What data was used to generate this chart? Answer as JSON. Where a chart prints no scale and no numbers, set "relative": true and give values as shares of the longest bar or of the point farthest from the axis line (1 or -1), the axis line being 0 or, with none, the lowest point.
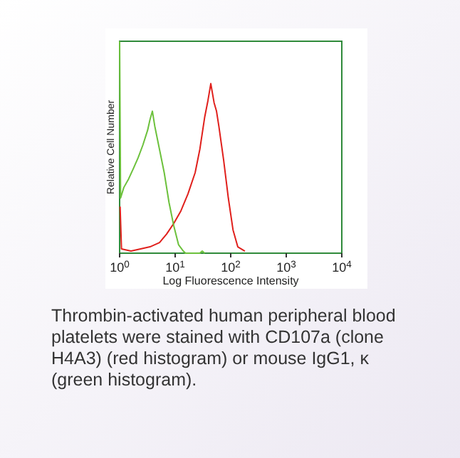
{
  "chart_data": {
    "type": "line",
    "relative": true,
    "log": "x",
    "xlabel": "Log Fluorescence Intensity",
    "ylabel": "Relative Cell Number",
    "xlim": [
      1,
      10000
    ],
    "xticks": [
      {
        "value": 1,
        "label": "10$^{0}$"
      },
      {
        "value": 10,
        "label": "10$^{1}$"
      },
      {
        "value": 100,
        "label": "10$^{2}$"
      },
      {
        "value": 1000,
        "label": "10$^{3}$"
      },
      {
        "value": 10000,
        "label": "10$^{4}$"
      }
    ],
    "grid": false,
    "line_style": "solid",
    "series": [
      {
        "color": "#e0201c",
        "x": [
          1.02,
          1.08,
          1.6,
          2.38,
          3.52,
          5.22,
          7.01,
          9.42,
          12.7,
          17,
          22.9,
          27.8,
          33.9,
          38.9,
          43.8,
          50.2,
          55.5,
          61.1,
          74.5,
          90.6,
          110,
          134,
          180
        ],
        "values": [
          0.22,
          0.02,
          0.01,
          0.02,
          0.03,
          0.05,
          0.09,
          0.14,
          0.2,
          0.28,
          0.38,
          0.49,
          0.64,
          0.72,
          0.8,
          0.71,
          0.67,
          0.6,
          0.44,
          0.26,
          0.11,
          0.03,
          0.01
        ]
      },
      {
        "color": "#6cc13c",
        "x": [
          1,
          1.04,
          1.19,
          1.45,
          1.77,
          2.15,
          2.62,
          3.19,
          3.52,
          3.89,
          4.29,
          5.22,
          6.35,
          7.74,
          9.42,
          11.5,
          14,
          15.4,
          27.8,
          30.7,
          33.9
        ],
        "values": [
          1,
          0.26,
          0.31,
          0.35,
          0.4,
          0.45,
          0.51,
          0.58,
          0.63,
          0.67,
          0.6,
          0.49,
          0.38,
          0.24,
          0.13,
          0.04,
          0.01,
          0,
          0,
          0.01,
          0
        ]
      }
    ],
    "annotations": [
      "Thrombin-activated human peripheral blood platelets were stained with CD107a (clone H4A3) (red histogram) or mouse IgG1, κ (green histogram)."
    ]
  }
}
